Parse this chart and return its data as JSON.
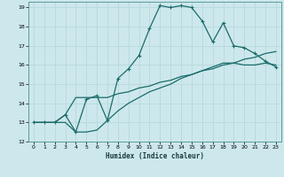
{
  "xlabel": "Humidex (Indice chaleur)",
  "bg_color": "#cde8ec",
  "grid_color": "#b8d8dc",
  "line_color": "#1a6b6b",
  "xlim": [
    -0.5,
    23.5
  ],
  "ylim": [
    12,
    19.3
  ],
  "xticks": [
    0,
    1,
    2,
    3,
    4,
    5,
    6,
    7,
    8,
    9,
    10,
    11,
    12,
    13,
    14,
    15,
    16,
    17,
    18,
    19,
    20,
    21,
    22,
    23
  ],
  "yticks": [
    12,
    13,
    14,
    15,
    16,
    17,
    18,
    19
  ],
  "line1_x": [
    0,
    1,
    2,
    3,
    4,
    5,
    6,
    7,
    8,
    9,
    10,
    11,
    12,
    13,
    14,
    15,
    16,
    17,
    18,
    19,
    20,
    21,
    22,
    23
  ],
  "line1_y": [
    13.0,
    13.0,
    13.0,
    13.4,
    12.5,
    14.2,
    14.4,
    13.1,
    15.3,
    15.8,
    16.5,
    17.9,
    19.1,
    19.0,
    19.1,
    19.0,
    18.3,
    17.2,
    18.2,
    17.0,
    16.9,
    16.6,
    16.2,
    15.9
  ],
  "line2_x": [
    0,
    1,
    2,
    3,
    4,
    5,
    6,
    7,
    8,
    9,
    10,
    11,
    12,
    13,
    14,
    15,
    16,
    17,
    18,
    19,
    20,
    21,
    22,
    23
  ],
  "line2_y": [
    13.0,
    13.0,
    13.0,
    13.4,
    14.3,
    14.3,
    14.3,
    14.3,
    14.5,
    14.6,
    14.8,
    14.9,
    15.1,
    15.2,
    15.4,
    15.5,
    15.7,
    15.8,
    16.0,
    16.1,
    16.3,
    16.4,
    16.6,
    16.7
  ],
  "line3_x": [
    0,
    1,
    2,
    3,
    4,
    5,
    6,
    7,
    8,
    9,
    10,
    11,
    12,
    13,
    14,
    15,
    16,
    17,
    18,
    19,
    20,
    21,
    22,
    23
  ],
  "line3_y": [
    13.0,
    13.0,
    13.0,
    13.0,
    12.5,
    12.5,
    12.6,
    13.1,
    13.6,
    14.0,
    14.3,
    14.6,
    14.8,
    15.0,
    15.3,
    15.5,
    15.7,
    15.9,
    16.1,
    16.1,
    16.0,
    16.0,
    16.1,
    16.0
  ]
}
